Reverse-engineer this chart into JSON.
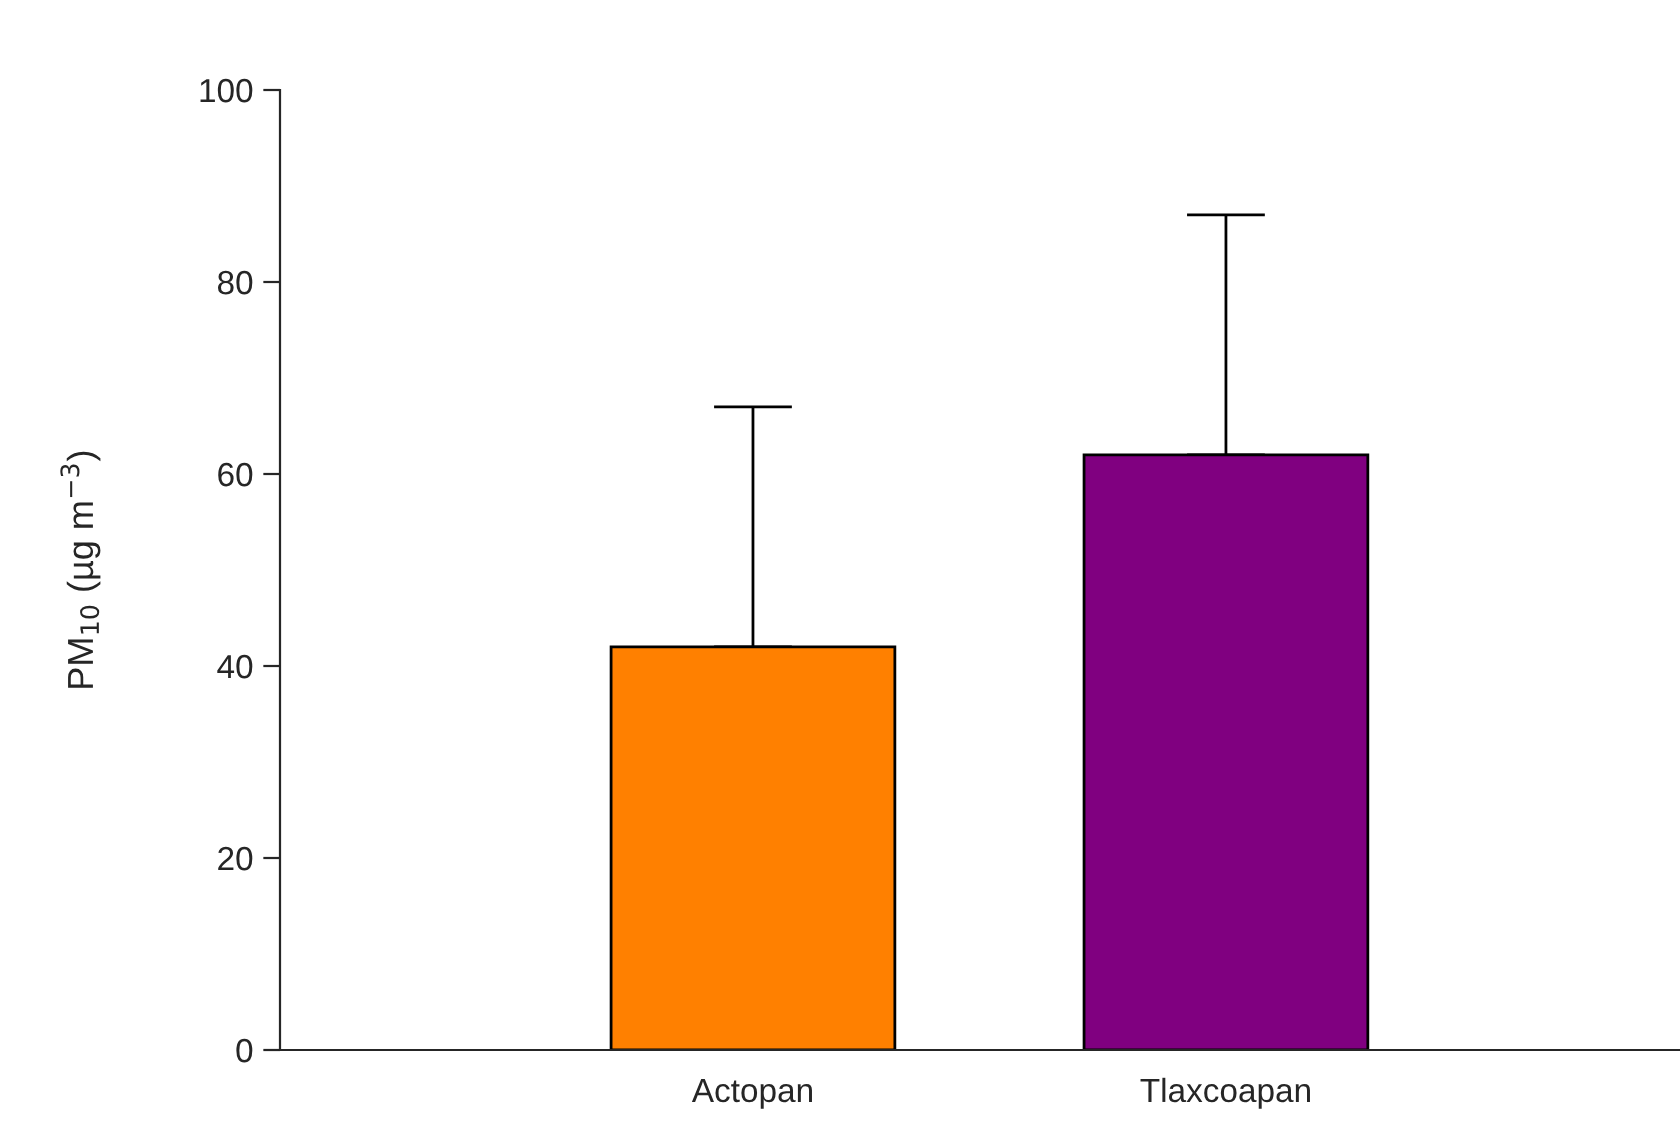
{
  "chart_data": {
    "type": "bar",
    "categories": [
      "Actopan",
      "Tlaxcoapan"
    ],
    "values": [
      42,
      62
    ],
    "colors": [
      "#ff8000",
      "#800080"
    ],
    "errors": [
      [
        42,
        67
      ],
      [
        62,
        87
      ]
    ],
    "ylabel": "PM$_{10}$ (µg m$^{−3}$)",
    "ylim": [
      0,
      100
    ],
    "yticks": [
      0,
      20,
      40,
      60,
      80,
      100
    ],
    "grid": false,
    "legend": false
  }
}
